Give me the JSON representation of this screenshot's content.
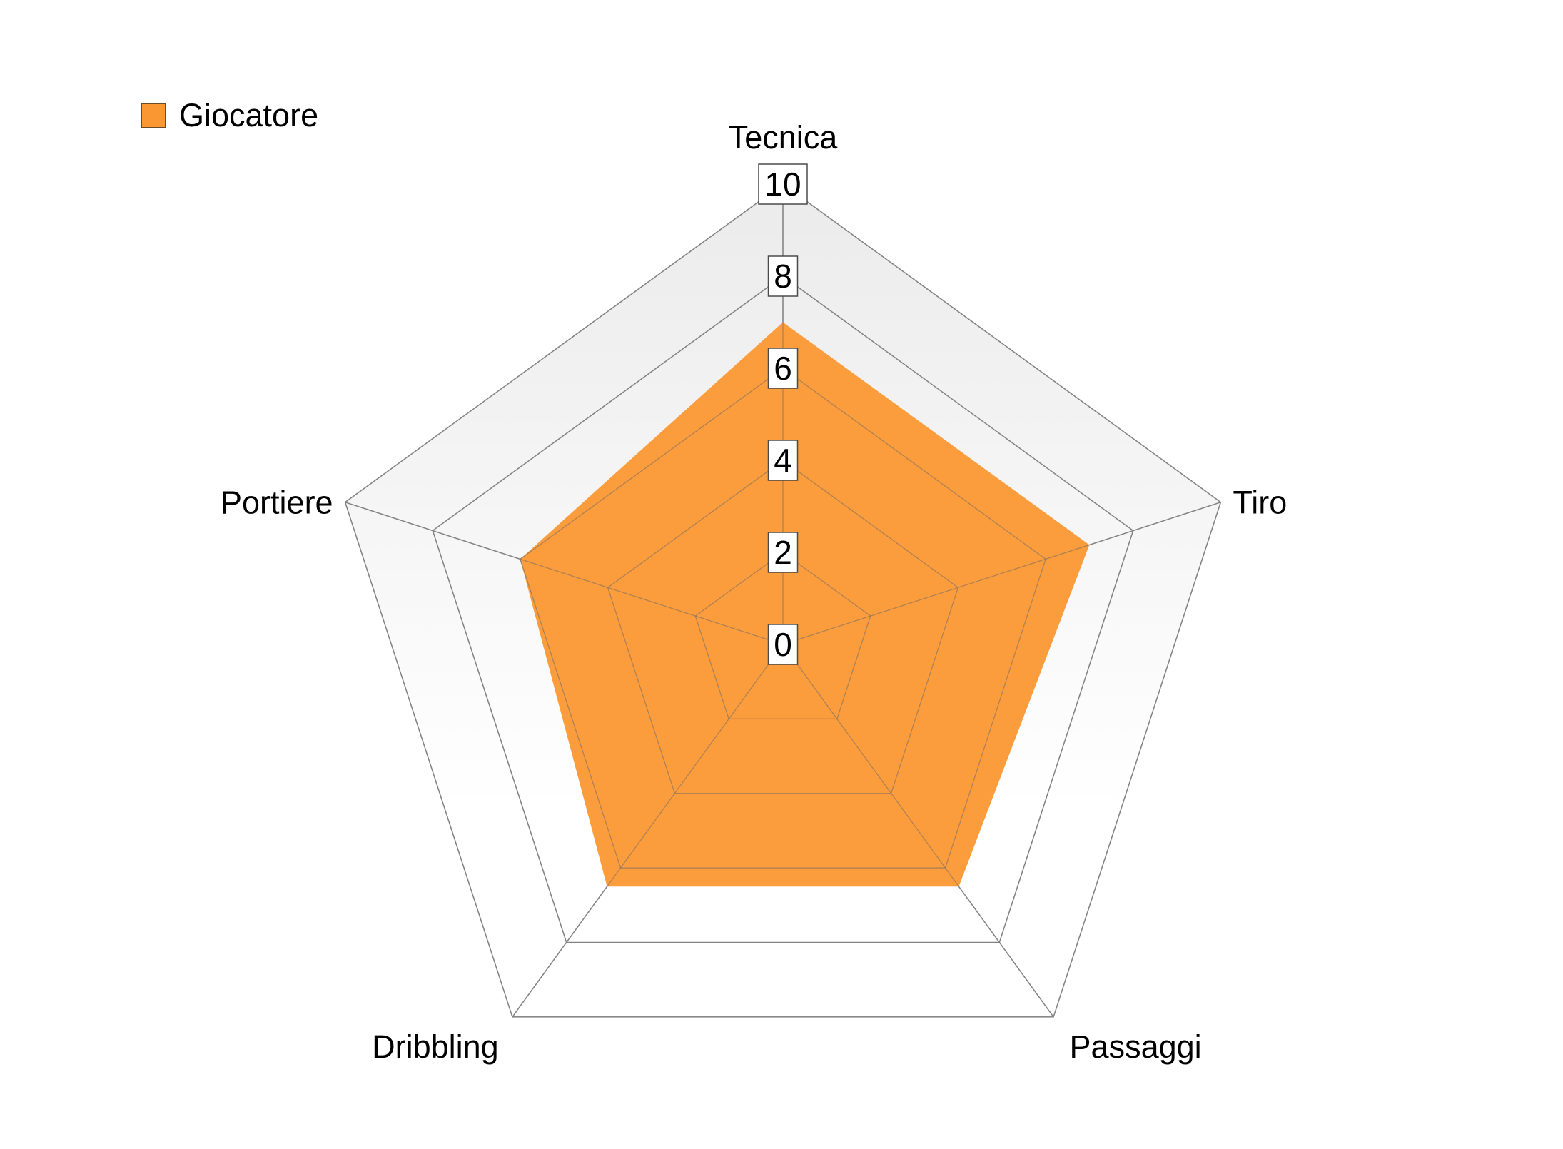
{
  "chart_data": {
    "type": "radar",
    "axes": [
      "Tecnica",
      "Tiro",
      "Passaggi",
      "Dribbling",
      "Portiere"
    ],
    "series": [
      {
        "name": "Giocatore",
        "values": [
          7,
          7,
          6.5,
          6.5,
          6
        ],
        "color": "#fb9733"
      }
    ],
    "range": [
      0,
      10
    ],
    "ticks": [
      "0",
      "2",
      "4",
      "6",
      "8",
      "10"
    ],
    "legend_position": "top-left",
    "grid": true,
    "background_gradient": [
      "#ebebeb",
      "#ffffff"
    ]
  }
}
